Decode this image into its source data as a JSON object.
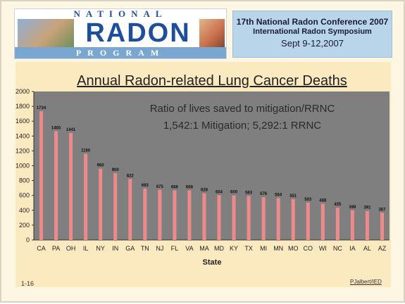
{
  "header": {
    "logo": {
      "top": "NATIONAL",
      "main": "RADON",
      "bottom": "PROGRAM"
    },
    "conference": {
      "line1": "17th National Radon Conference 2007",
      "line2": "International Radon Symposium",
      "line3": "Sept 9-12,2007"
    }
  },
  "footer": {
    "page_number": "1-16",
    "author": "PJalbert/IED"
  },
  "colors": {
    "bar": "#f08a8a",
    "plot_area": "#7f7f7f",
    "panel": "#fbe9c0"
  },
  "chart_data": {
    "type": "bar",
    "title": "Annual Radon-related Lung Cancer Deaths",
    "xlabel": "State",
    "ylabel": "",
    "ylim": [
      0,
      2000
    ],
    "yticks": [
      0,
      200,
      400,
      600,
      800,
      1000,
      1200,
      1400,
      1600,
      1800,
      2000
    ],
    "categories": [
      "CA",
      "PA",
      "OH",
      "IL",
      "NY",
      "IN",
      "GA",
      "TN",
      "NJ",
      "FL",
      "VA",
      "MA",
      "MD",
      "KY",
      "TX",
      "MI",
      "MN",
      "MO",
      "CO",
      "WI",
      "NC",
      "IA",
      "AL",
      "AZ"
    ],
    "values": [
      1734,
      1465,
      1441,
      1160,
      960,
      900,
      822,
      693,
      675,
      668,
      668,
      628,
      604,
      600,
      593,
      576,
      564,
      551,
      503,
      488,
      435,
      399,
      391,
      367
    ],
    "annotation": [
      "Ratio of lives saved to mitigation/RRNC",
      "1,542:1 Mitigation; 5,292:1 RRNC"
    ]
  }
}
